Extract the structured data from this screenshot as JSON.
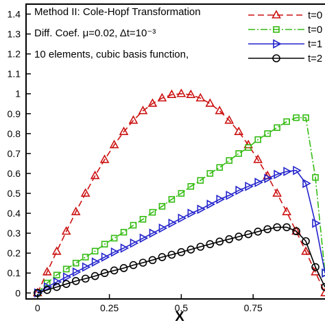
{
  "chart_data": {
    "type": "line",
    "xlabel": "X",
    "ylabel": "",
    "xlim": [
      -0.04,
      1.0
    ],
    "ylim": [
      -0.03,
      1.45
    ],
    "x_ticks": [
      0,
      0.25,
      0.5,
      0.75
    ],
    "x_tick_labels": [
      "0",
      "0.25",
      "0.5",
      "0.75"
    ],
    "y_ticks": [
      0,
      0.1,
      0.2,
      0.3,
      0.4,
      0.5,
      0.6,
      0.7,
      0.8,
      0.9,
      1,
      1.1,
      1.2,
      1.3,
      1.4
    ],
    "y_tick_labels": [
      "0",
      "0.1",
      "0.2",
      "0.3",
      "0.4",
      "0.5",
      "0.6",
      "0.7",
      "0.8",
      "0.9",
      "1",
      "1.1",
      "1.2",
      "1.3",
      "1.4"
    ],
    "annotations": [
      "Method II: Cole-Hopf Transformation",
      "Diff. Coef.  μ=0.02,  Δt=10⁻³",
      "10 elements, cubic basis function,"
    ],
    "legend_position": "top-right",
    "series": [
      {
        "name": "t=0",
        "color": "#cc1111",
        "dash": "9,5",
        "marker": "triangle-up",
        "x": [
          0,
          0.0333,
          0.0667,
          0.1,
          0.1333,
          0.1667,
          0.2,
          0.2333,
          0.2667,
          0.3,
          0.3333,
          0.3667,
          0.4,
          0.4333,
          0.4667,
          0.5,
          0.5333,
          0.5667,
          0.6,
          0.6333,
          0.6667,
          0.7,
          0.7333,
          0.7667,
          0.8,
          0.8333,
          0.8667,
          0.9,
          0.9333,
          0.9667,
          1.0
        ],
        "y": [
          0,
          0.105,
          0.208,
          0.309,
          0.407,
          0.5,
          0.588,
          0.669,
          0.743,
          0.809,
          0.866,
          0.914,
          0.951,
          0.978,
          0.995,
          1.0,
          0.995,
          0.978,
          0.951,
          0.914,
          0.866,
          0.809,
          0.743,
          0.669,
          0.588,
          0.5,
          0.407,
          0.309,
          0.208,
          0.105,
          0
        ]
      },
      {
        "name": "t=0",
        "color": "#33bb11",
        "dash": "10,3,2,3",
        "marker": "square",
        "x": [
          0,
          0.0333,
          0.0667,
          0.1,
          0.1333,
          0.1667,
          0.2,
          0.2333,
          0.2667,
          0.3,
          0.3333,
          0.3667,
          0.4,
          0.4333,
          0.4667,
          0.5,
          0.5333,
          0.5667,
          0.6,
          0.6333,
          0.6667,
          0.7,
          0.7333,
          0.7667,
          0.8,
          0.8333,
          0.8667,
          0.9,
          0.9333,
          0.9667,
          1.0
        ],
        "y": [
          0,
          0.05,
          0.09,
          0.12,
          0.15,
          0.18,
          0.21,
          0.245,
          0.275,
          0.305,
          0.34,
          0.37,
          0.405,
          0.435,
          0.47,
          0.5,
          0.535,
          0.565,
          0.6,
          0.63,
          0.665,
          0.7,
          0.73,
          0.77,
          0.8,
          0.83,
          0.86,
          0.88,
          0.88,
          0.58,
          0.1
        ]
      },
      {
        "name": "t=1",
        "color": "#2222cc",
        "dash": "",
        "marker": "triangle-right",
        "x": [
          0,
          0.0333,
          0.0667,
          0.1,
          0.1333,
          0.1667,
          0.2,
          0.2333,
          0.2667,
          0.3,
          0.3333,
          0.3667,
          0.4,
          0.4333,
          0.4667,
          0.5,
          0.5333,
          0.5667,
          0.6,
          0.6333,
          0.6667,
          0.7,
          0.7333,
          0.7667,
          0.8,
          0.8333,
          0.8667,
          0.9,
          0.9333,
          0.9667,
          1.0
        ],
        "y": [
          0,
          0.03,
          0.055,
          0.08,
          0.105,
          0.13,
          0.155,
          0.18,
          0.205,
          0.225,
          0.25,
          0.275,
          0.3,
          0.325,
          0.35,
          0.375,
          0.4,
          0.42,
          0.445,
          0.47,
          0.49,
          0.515,
          0.535,
          0.555,
          0.575,
          0.595,
          0.61,
          0.615,
          0.55,
          0.35,
          0.1
        ]
      },
      {
        "name": "t=2",
        "color": "#000000",
        "dash": "",
        "marker": "circle",
        "x": [
          0,
          0.0333,
          0.0667,
          0.1,
          0.1333,
          0.1667,
          0.2,
          0.2333,
          0.2667,
          0.3,
          0.3333,
          0.3667,
          0.4,
          0.4333,
          0.4667,
          0.5,
          0.5333,
          0.5667,
          0.6,
          0.6333,
          0.6667,
          0.7,
          0.7333,
          0.7667,
          0.8,
          0.8333,
          0.8667,
          0.9,
          0.9333,
          0.9667,
          1.0
        ],
        "y": [
          0,
          0.015,
          0.03,
          0.045,
          0.06,
          0.072,
          0.085,
          0.1,
          0.113,
          0.125,
          0.14,
          0.152,
          0.165,
          0.18,
          0.192,
          0.205,
          0.218,
          0.232,
          0.245,
          0.258,
          0.27,
          0.283,
          0.295,
          0.308,
          0.32,
          0.33,
          0.33,
          0.31,
          0.26,
          0.13,
          0.03
        ]
      }
    ]
  }
}
